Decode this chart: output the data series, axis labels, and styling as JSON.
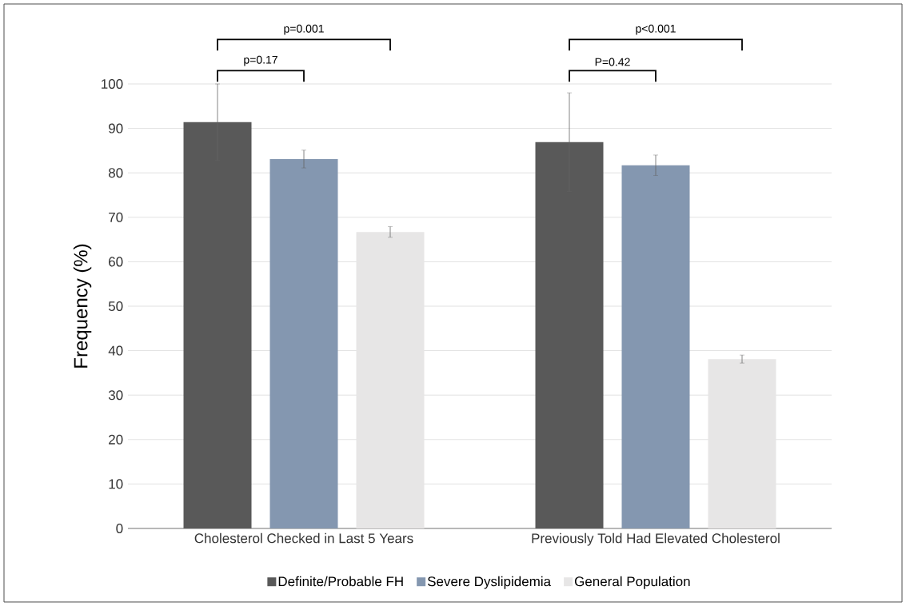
{
  "chart_data": {
    "type": "bar",
    "ylabel": "Frequency (%)",
    "categories": [
      "Cholesterol Checked in Last 5 Years",
      "Previously Told Had Elevated Cholesterol"
    ],
    "series": [
      {
        "name": "Definite/Probable FH",
        "color": "#595959",
        "values": [
          91.4,
          86.9
        ],
        "errors": [
          8.6,
          11.1
        ]
      },
      {
        "name": "Severe Dyslipidemia",
        "color": "#8497b0",
        "values": [
          83.1,
          81.7
        ],
        "errors": [
          2.0,
          2.3
        ]
      },
      {
        "name": "General Population",
        "color": "#e7e6e6",
        "values": [
          66.7,
          38.1
        ],
        "errors": [
          1.2,
          0.9
        ]
      }
    ],
    "ylim": [
      0,
      100
    ],
    "yticks": [
      0,
      10,
      20,
      30,
      40,
      50,
      60,
      70,
      80,
      90,
      100
    ],
    "grid": "y",
    "legend": "bottom",
    "annotations": [
      "p=0.001",
      "p=0.17",
      "p<0.001",
      "P=0.42"
    ]
  }
}
